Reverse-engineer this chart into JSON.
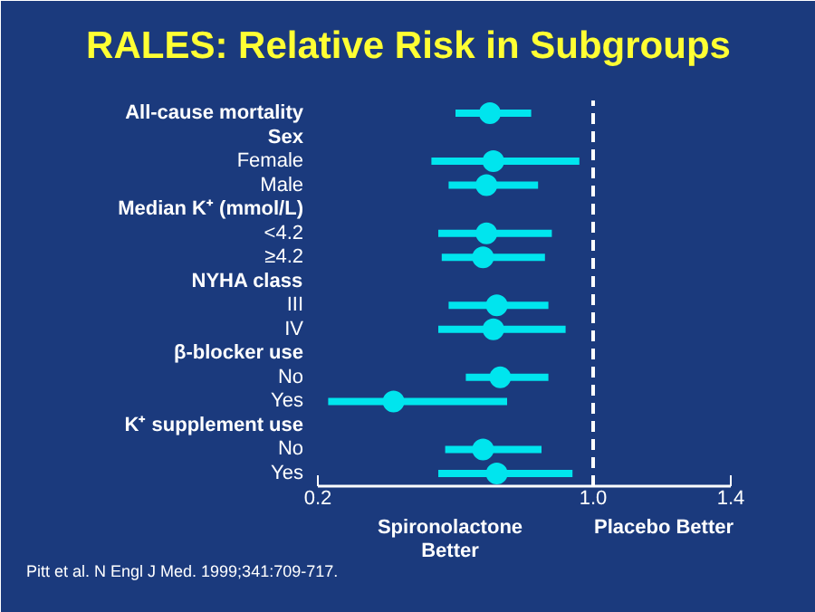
{
  "chart_data": {
    "type": "scatter",
    "title": "RALES: Relative Risk in Subgroups",
    "categories": [
      "All-cause mortality",
      "Sex",
      "Female",
      "Male",
      "Median K⁺ (mmol/L)",
      "<4.2",
      "≥4.2",
      "NYHA class",
      "III",
      "IV",
      "β-blocker use",
      "No",
      "Yes",
      "K⁺ supplement use",
      "No",
      "Yes"
    ],
    "orientation": "horizontal",
    "color": "#00e5ee",
    "values": [
      0.7,
      null,
      0.71,
      0.69,
      null,
      0.69,
      0.68,
      null,
      0.72,
      0.71,
      null,
      0.73,
      0.42,
      null,
      0.68,
      0.72
    ],
    "errors": [
      [
        0.6,
        0.82
      ],
      null,
      [
        0.53,
        0.96
      ],
      [
        0.58,
        0.84
      ],
      null,
      [
        0.55,
        0.88
      ],
      [
        0.56,
        0.86
      ],
      null,
      [
        0.58,
        0.87
      ],
      [
        0.55,
        0.92
      ],
      null,
      [
        0.63,
        0.87
      ],
      [
        0.23,
        0.75
      ],
      null,
      [
        0.57,
        0.85
      ],
      [
        0.55,
        0.94
      ]
    ],
    "xlim": [
      0.2,
      1.4
    ],
    "xticks": [
      0.2,
      {
        "value": 1.0,
        "label": "1.0"
      },
      1.4
    ],
    "ref_lines": [
      {
        "axis": "x",
        "value": 1.0,
        "color": "#ffffff",
        "line_style": "dashed"
      }
    ],
    "annotations": [
      "Spironolactone\nBetter",
      "Placebo Better",
      "Pitt et al. N Engl J Med. 1999;341:709-717."
    ],
    "marker": "circle",
    "grid": false
  }
}
